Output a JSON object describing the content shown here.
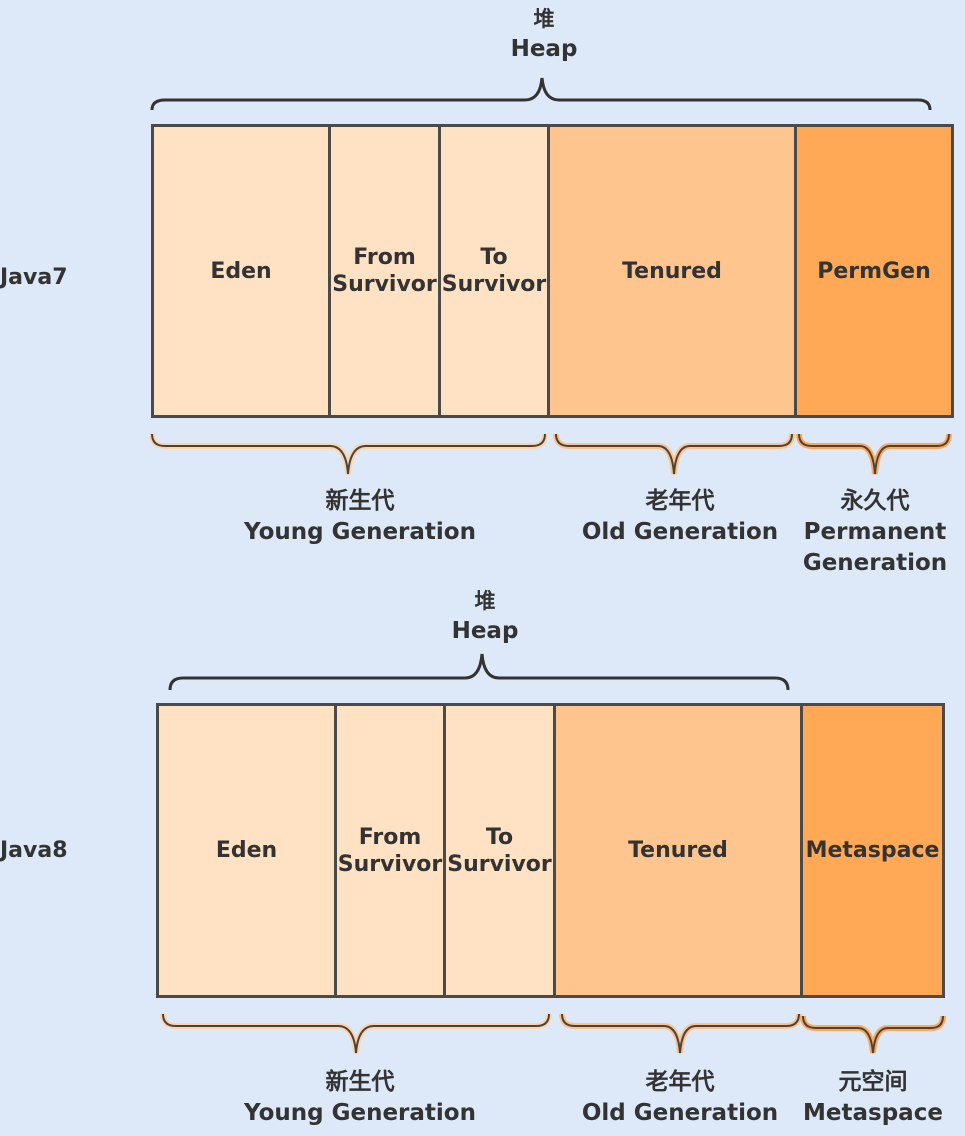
{
  "colors": {
    "background": "#dde9f8",
    "young": "#ffe1c3",
    "old": "#ffc58e",
    "perm": "#ffa957",
    "outline": "#4a4a4a"
  },
  "java7": {
    "label": "Java7",
    "heap": {
      "cn": "堆",
      "en": "Heap"
    },
    "regions": {
      "eden": "Eden",
      "from_survivor": "From\nSurvivor",
      "to_survivor": "To\nSurvivor",
      "tenured": "Tenured",
      "permgen": "PermGen"
    },
    "young": {
      "cn": "新生代",
      "en": "Young Generation"
    },
    "old": {
      "cn": "老年代",
      "en": "Old Generation"
    },
    "permanent": {
      "cn": "永久代",
      "en1": "Permanent",
      "en2": "Generation"
    }
  },
  "java8": {
    "label": "Java8",
    "heap": {
      "cn": "堆",
      "en": "Heap"
    },
    "regions": {
      "eden": "Eden",
      "from_survivor": "From\nSurvivor",
      "to_survivor": "To\nSurvivor",
      "tenured": "Tenured",
      "metaspace": "Metaspace"
    },
    "young": {
      "cn": "新生代",
      "en": "Young Generation"
    },
    "old": {
      "cn": "老年代",
      "en": "Old Generation"
    },
    "metaspace": {
      "cn": "元空间",
      "en": "Metaspace"
    }
  }
}
